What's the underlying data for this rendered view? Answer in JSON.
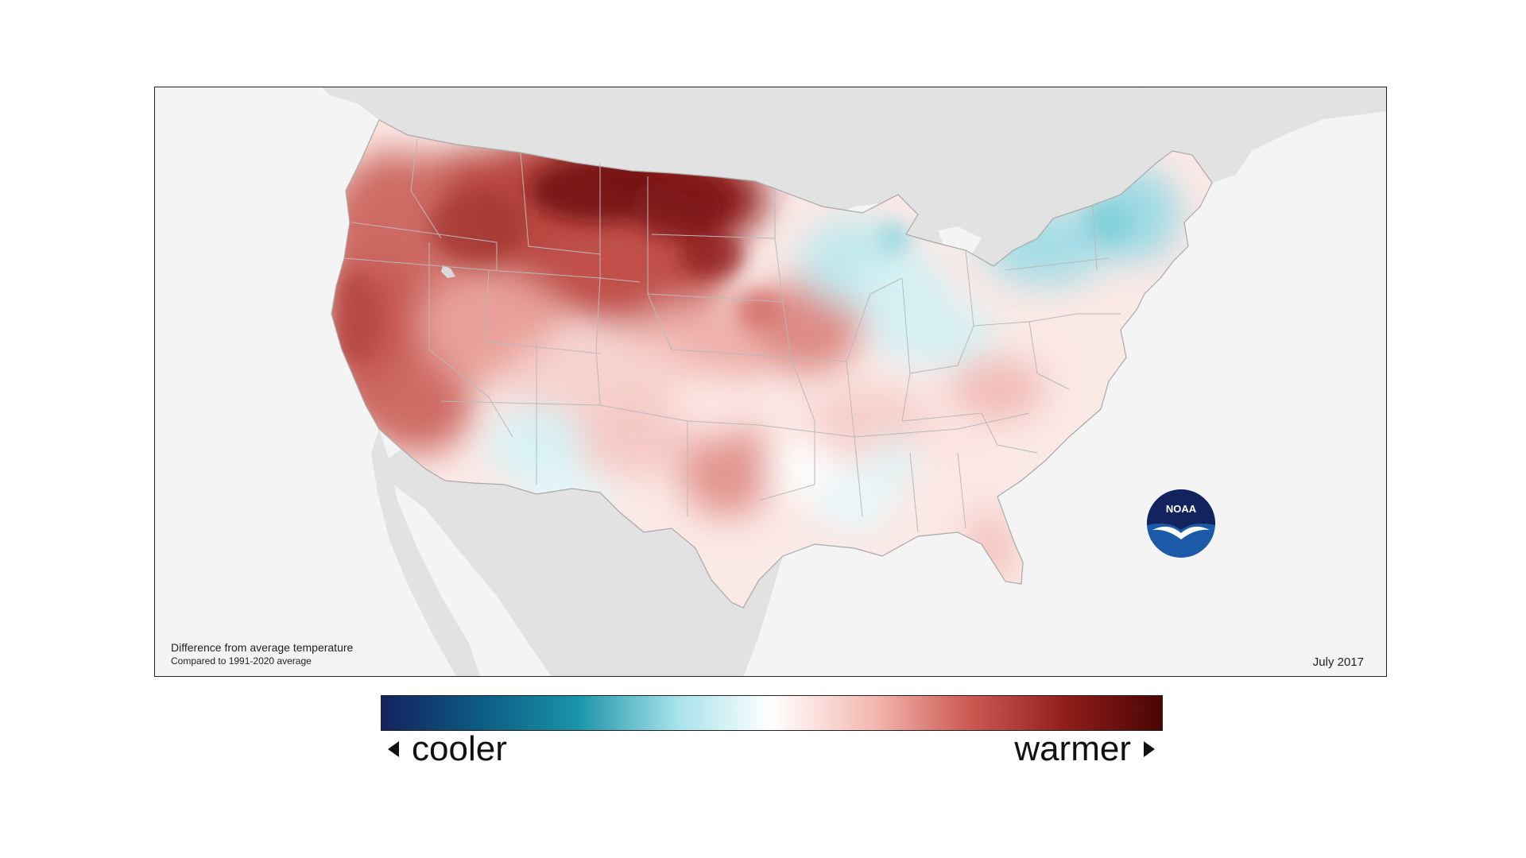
{
  "map": {
    "caption_title": "Difference from average temperature",
    "caption_subtitle": "Compared to 1991-2020 average",
    "date": "July 2017",
    "logo_text": "NOAA",
    "colors": {
      "ocean": "#f4f4f4",
      "land_outside": "#e2e2e2",
      "state_border": "#b9b9b9",
      "warm_max": "#5c0a0a",
      "warm_mid": "#b9463f",
      "neutral": "#ffffff",
      "cool_mid": "#8fd6de",
      "cool_max": "#13235e"
    }
  },
  "legend": {
    "left_label": "cooler",
    "right_label": "warmer",
    "left_icon": "triangle-left-icon",
    "right_icon": "triangle-right-icon",
    "colors": [
      "#13235e",
      "#0d5c84",
      "#1a93a8",
      "#a8e3ea",
      "#ffffff",
      "#f4b8b2",
      "#cd5c55",
      "#8e1d1a",
      "#4a0505"
    ]
  }
}
